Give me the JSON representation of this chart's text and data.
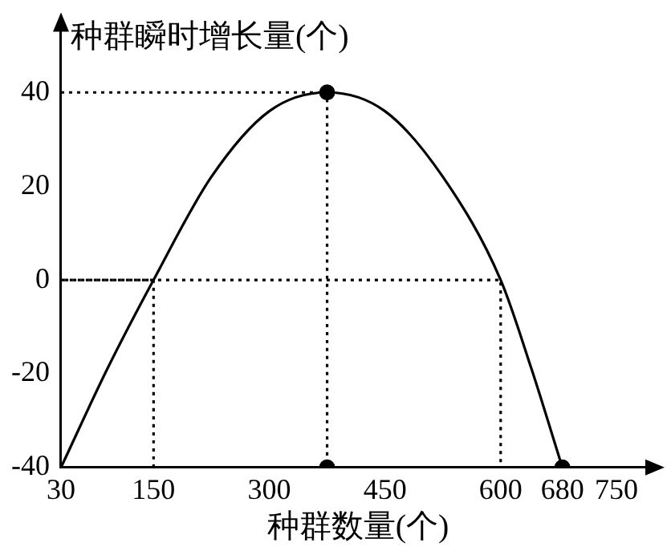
{
  "chart_data": {
    "type": "line",
    "xlabel": "种群数量(个)",
    "ylabel": "种群瞬时增长量(个)",
    "xlim": [
      30,
      800
    ],
    "xticks": [
      30,
      150,
      300,
      450,
      600,
      680,
      750
    ],
    "ylim": [
      -40,
      55
    ],
    "yticks": [
      40,
      20,
      0,
      -20,
      -40
    ],
    "grid": false,
    "legend": false,
    "marker": "none",
    "line_style": "solid",
    "series": [
      {
        "color": "#000000",
        "x": [
          30,
          90,
          150,
          225,
          300,
          375,
          450,
          525,
          600,
          640,
          680
        ],
        "values": [
          -40,
          -19,
          0,
          22,
          36,
          40,
          36,
          22,
          0,
          -19,
          -40
        ]
      },
      {
        "type": "line",
        "color": "#000000",
        "line_style": "dotted",
        "x": [
          30,
          375,
          375
        ],
        "values": [
          40,
          40,
          -40
        ]
      },
      {
        "type": "line",
        "color": "#000000",
        "line_style": "dotted",
        "x": [
          150,
          150,
          30,
          600,
          600
        ],
        "values": [
          -40,
          0,
          0,
          0,
          -40
        ]
      },
      {
        "type": "scatter",
        "color": "#000000",
        "marker": "circle",
        "x": [
          375,
          375,
          680
        ],
        "values": [
          40,
          -40,
          -40
        ]
      }
    ]
  }
}
